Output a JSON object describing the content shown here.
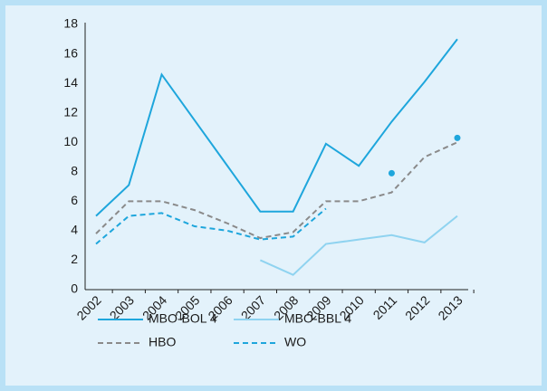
{
  "chart_data": {
    "type": "line",
    "categories": [
      "2002",
      "2003",
      "2004",
      "2005",
      "2006",
      "2007",
      "2008",
      "2009",
      "2010",
      "2011",
      "2012",
      "2013"
    ],
    "series": [
      {
        "name": "MBO-BOL 4",
        "color": "#1ea6dc",
        "dashed": false,
        "values": [
          5,
          7.1,
          14.6,
          11.5,
          8.4,
          5.3,
          5.3,
          9.9,
          8.4,
          11.4,
          14.1,
          17
        ]
      },
      {
        "name": "MBO-BBL 4",
        "color": "#8fd3f0",
        "dashed": false,
        "values": [
          null,
          null,
          null,
          null,
          null,
          2.0,
          1.0,
          3.1,
          3.4,
          3.7,
          3.2,
          5.0
        ]
      },
      {
        "name": "HBO",
        "color": "#8a8a8a",
        "dashed": true,
        "values": [
          3.8,
          6,
          6,
          5.4,
          4.5,
          3.5,
          3.9,
          6,
          6,
          6.6,
          9,
          10
        ]
      },
      {
        "name": "WO",
        "color": "#1ea6dc",
        "dashed": true,
        "values": [
          3.1,
          5,
          5.2,
          4.3,
          4,
          3.4,
          3.6,
          5.5,
          null,
          7.9,
          null,
          10.3
        ]
      }
    ],
    "ylim": [
      0,
      18
    ],
    "yticks": [
      0,
      2,
      4,
      6,
      8,
      10,
      12,
      14,
      16,
      18
    ],
    "grid": false
  }
}
